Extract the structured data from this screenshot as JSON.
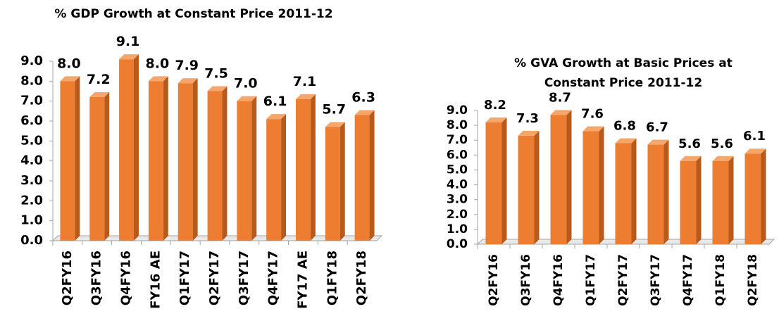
{
  "chart_data": [
    {
      "type": "bar",
      "title": "% GDP Growth at Constant Price 2011-12",
      "categories": [
        "Q2FY16",
        "Q3FY16",
        "Q4FY16",
        "FY16 AE",
        "Q1FY17",
        "Q2FY17",
        "Q3FY17",
        "Q4FY17",
        "FY17 AE",
        "Q1FY18",
        "Q2FY18"
      ],
      "values": [
        8.0,
        7.2,
        9.1,
        8.0,
        7.9,
        7.5,
        7.0,
        6.1,
        7.1,
        5.7,
        6.3
      ],
      "value_labels": [
        "8.0",
        "7.2",
        "9.1",
        "8.0",
        "7.9",
        "7.5",
        "7.0",
        "6.1",
        "7.1",
        "5.7",
        "6.3"
      ],
      "color": "#ed7d31",
      "ylim": [
        0,
        9
      ],
      "yticks": [
        {
          "value": 0,
          "label": "0.0"
        },
        {
          "value": 1,
          "label": "1.0"
        },
        {
          "value": 2,
          "label": "2.0"
        },
        {
          "value": 3,
          "label": "3.0"
        },
        {
          "value": 4,
          "label": "4.0"
        },
        {
          "value": 5,
          "label": "5.0"
        },
        {
          "value": 6,
          "label": "6.0"
        },
        {
          "value": 7,
          "label": "7.0"
        },
        {
          "value": 8,
          "label": "8.0"
        },
        {
          "value": 9,
          "label": "9.0"
        }
      ],
      "grid": false
    },
    {
      "type": "bar",
      "title": "% GVA Growth at Basic Prices at Constant Price 2011-12",
      "categories": [
        "Q2FY16",
        "Q3FY16",
        "Q4FY16",
        "Q1FY17",
        "Q2FY17",
        "Q3FY17",
        "Q4FY17",
        "Q1FY18",
        "Q2FY18"
      ],
      "values": [
        8.2,
        7.3,
        8.7,
        7.6,
        6.8,
        6.7,
        5.6,
        5.6,
        6.1
      ],
      "value_labels": [
        "8.2",
        "7.3",
        "8.7",
        "7.6",
        "6.8",
        "6.7",
        "5.6",
        "5.6",
        "6.1"
      ],
      "color": "#ed7d31",
      "ylim": [
        0,
        9
      ],
      "yticks": [
        {
          "value": 0,
          "label": "0.0"
        },
        {
          "value": 1,
          "label": "1.0"
        },
        {
          "value": 2,
          "label": "2.0"
        },
        {
          "value": 3,
          "label": "3.0"
        },
        {
          "value": 4,
          "label": "4.0"
        },
        {
          "value": 5,
          "label": "5.0"
        },
        {
          "value": 6,
          "label": "6.0"
        },
        {
          "value": 7,
          "label": "7.0"
        },
        {
          "value": 8,
          "label": "8.0"
        },
        {
          "value": 9,
          "label": "9.0"
        }
      ],
      "grid": false
    }
  ]
}
